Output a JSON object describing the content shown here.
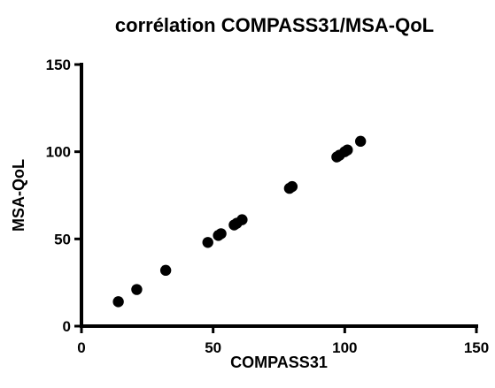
{
  "chart_data": {
    "type": "scatter",
    "title": "corrélation COMPASS31/MSA-QoL",
    "xlabel": "COMPASS31",
    "ylabel": "MSA-QoL",
    "xlim": [
      0,
      150
    ],
    "ylim": [
      0,
      150
    ],
    "x_ticks": [
      "0",
      "50",
      "100",
      "150"
    ],
    "y_ticks": [
      "0",
      "50",
      "100",
      "150"
    ],
    "grid": false,
    "marker_color": "#000000",
    "points": [
      {
        "x": 14,
        "y": 14
      },
      {
        "x": 21,
        "y": 21
      },
      {
        "x": 32,
        "y": 32
      },
      {
        "x": 48,
        "y": 48
      },
      {
        "x": 52,
        "y": 52
      },
      {
        "x": 53,
        "y": 53
      },
      {
        "x": 58,
        "y": 58
      },
      {
        "x": 59,
        "y": 59
      },
      {
        "x": 61,
        "y": 61
      },
      {
        "x": 79,
        "y": 79
      },
      {
        "x": 80,
        "y": 80
      },
      {
        "x": 97,
        "y": 97
      },
      {
        "x": 98,
        "y": 98
      },
      {
        "x": 100,
        "y": 100
      },
      {
        "x": 101,
        "y": 101
      },
      {
        "x": 106,
        "y": 106
      }
    ]
  }
}
